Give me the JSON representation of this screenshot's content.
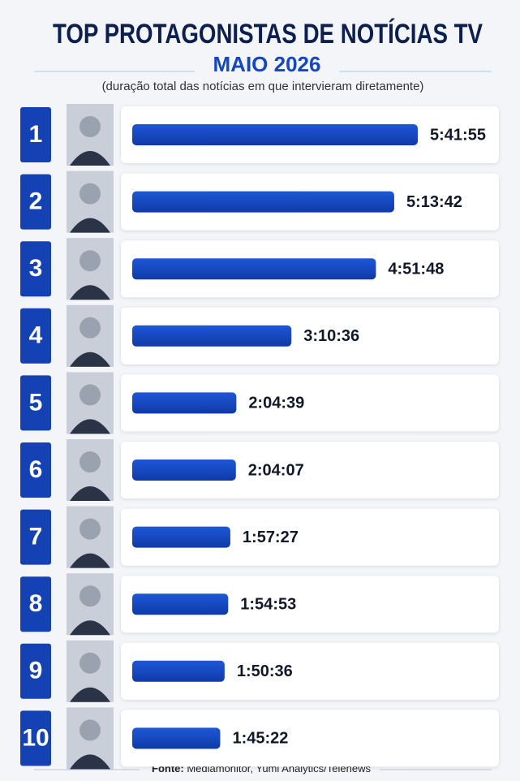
{
  "chart_data": {
    "type": "bar",
    "orientation": "horizontal",
    "title": "TOP PROTAGONISTAS DE NOTÍCIAS TV",
    "subtitle": "MAIO 2026",
    "note": "(duração total das notícias em que intervieram diretamente)",
    "categories": [
      1,
      2,
      3,
      4,
      5,
      6,
      7,
      8,
      9,
      10
    ],
    "values": [
      20515,
      18822,
      17508,
      11436,
      7479,
      7447,
      7047,
      6893,
      6636,
      6322
    ],
    "value_labels": [
      "5:41:55",
      "5:13:42",
      "4:51:48",
      "3:10:36",
      "2:04:39",
      "2:04:07",
      "1:57:27",
      "1:54:53",
      "1:50:36",
      "1:45:22"
    ],
    "color": "#1447c0",
    "source_label": "Fonte:",
    "source": "Mediamonitor, Yumi Analytics/Telenews"
  }
}
